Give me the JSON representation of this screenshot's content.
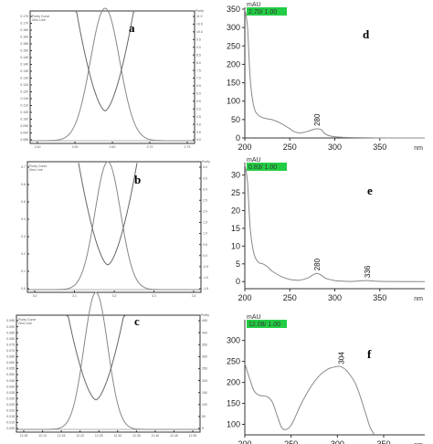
{
  "chart_data": [
    {
      "panel": "a",
      "type": "line",
      "legend": [
        "Purity Curve",
        "Zero Line"
      ],
      "right_axis_label": "Purity",
      "x_ticks": [
        "2.40",
        "2.50",
        "2.60",
        "2.70",
        "2.75"
      ],
      "left_ticks": [
        "0.175",
        "0.170",
        "0.165",
        "0.160",
        "0.155",
        "0.150",
        "0.145",
        "0.140",
        "0.135",
        "0.130",
        "0.125",
        "0.120",
        "0.115",
        "0.110",
        "0.105",
        "0.100",
        "0.095",
        "0.090",
        "0.085"
      ],
      "right_ticks": [
        "11.0",
        "10.5",
        "10.0",
        "9.5",
        "9.0",
        "8.5",
        "8.0",
        "7.5",
        "7.0",
        "6.5",
        "6.0",
        "5.5",
        "5.0",
        "4.5",
        "4.0",
        "3.5",
        "3.0"
      ]
    },
    {
      "panel": "b",
      "type": "line",
      "legend": [
        "Purity Curve",
        "Zero Line"
      ],
      "right_axis_label": "Purity",
      "x_ticks": [
        "3.0",
        "3.1",
        "3.2",
        "3.3",
        "3.4"
      ],
      "left_ticks": [
        "0.7",
        "0.6",
        "0.5",
        "0.4",
        "0.3",
        "0.2",
        "0.1",
        "0.0"
      ],
      "right_ticks": [
        "4.0",
        "3.5",
        "3.0",
        "2.5",
        "2.0",
        "1.5",
        "1.0",
        "0.5",
        "0.0",
        "-0.5",
        "-1.0",
        "-1.5"
      ]
    },
    {
      "panel": "c",
      "type": "line",
      "legend": [
        "Purity Curve",
        "Zero Line"
      ],
      "right_axis_label": "Purity",
      "x_ticks": [
        "12.05",
        "12.10",
        "12.15",
        "12.20",
        "12.25",
        "12.30",
        "12.35",
        "12.40",
        "12.45",
        "12.50"
      ],
      "left_ticks": [
        "0.095",
        "0.090",
        "0.085",
        "0.080",
        "0.075",
        "0.070",
        "0.065",
        "0.060",
        "0.055",
        "0.050",
        "0.045",
        "0.040",
        "0.035",
        "0.030",
        "0.025",
        "0.020",
        "0.015",
        "0.010",
        "0.005"
      ],
      "right_ticks": [
        "450",
        "400",
        "350",
        "300",
        "250",
        "200",
        "150",
        "100",
        "50",
        "0"
      ]
    },
    {
      "panel": "d",
      "type": "line",
      "ylabel": "mAU",
      "xlabel": "nm",
      "badge": "2.70/ 1.00",
      "xlim": [
        200,
        400
      ],
      "ylim": [
        0,
        350
      ],
      "x_ticks": [
        200,
        250,
        300,
        350
      ],
      "y_ticks": [
        0,
        50,
        100,
        150,
        200,
        250,
        300,
        350
      ],
      "x": [
        200,
        203,
        206,
        210,
        215,
        220,
        225,
        230,
        240,
        250,
        255,
        260,
        265,
        270,
        275,
        280,
        285,
        290,
        300,
        320,
        350,
        400
      ],
      "y": [
        350,
        300,
        160,
        85,
        62,
        55,
        52,
        50,
        40,
        25,
        17,
        14,
        15,
        18,
        22,
        25,
        22,
        10,
        3,
        1,
        0,
        0
      ],
      "peak_labels": [
        {
          "x": 280,
          "label": "280"
        }
      ]
    },
    {
      "panel": "e",
      "type": "line",
      "ylabel": "mAU",
      "xlabel": "nm",
      "badge": "0.83/ 1.00",
      "xlim": [
        200,
        400
      ],
      "ylim": [
        -2,
        33
      ],
      "x_ticks": [
        200,
        250,
        300,
        350
      ],
      "y_ticks": [
        0,
        5,
        10,
        15,
        20,
        25,
        30
      ],
      "x": [
        200,
        203,
        206,
        210,
        215,
        220,
        225,
        230,
        240,
        250,
        260,
        270,
        275,
        280,
        285,
        290,
        300,
        310,
        320,
        336,
        350,
        400
      ],
      "y": [
        33,
        28,
        15,
        8,
        5.5,
        5.0,
        4.2,
        3.0,
        1.5,
        0.6,
        0.4,
        1.0,
        1.8,
        2.3,
        1.8,
        0.9,
        0.3,
        0.1,
        0.05,
        0.3,
        0.05,
        0
      ],
      "peak_labels": [
        {
          "x": 280,
          "label": "280"
        },
        {
          "x": 336,
          "label": "336"
        }
      ]
    },
    {
      "panel": "f",
      "type": "line",
      "ylabel": "mAU",
      "xlabel": "nm",
      "badge": "12.08/ 1.00",
      "xlim": [
        200,
        350
      ],
      "ylim": [
        75,
        345
      ],
      "x_ticks": [
        200,
        250,
        300,
        350
      ],
      "y_ticks": [
        100,
        150,
        200,
        250,
        300
      ],
      "x": [
        200,
        205,
        210,
        215,
        220,
        225,
        230,
        235,
        240,
        245,
        250,
        255,
        260,
        270,
        280,
        290,
        300,
        304,
        310,
        320,
        330,
        335,
        340
      ],
      "y": [
        245,
        210,
        180,
        170,
        168,
        165,
        152,
        120,
        92,
        88,
        98,
        120,
        145,
        185,
        215,
        232,
        238,
        237,
        228,
        195,
        130,
        95,
        75
      ],
      "peak_labels": [
        {
          "x": 304,
          "label": "304"
        }
      ]
    }
  ]
}
